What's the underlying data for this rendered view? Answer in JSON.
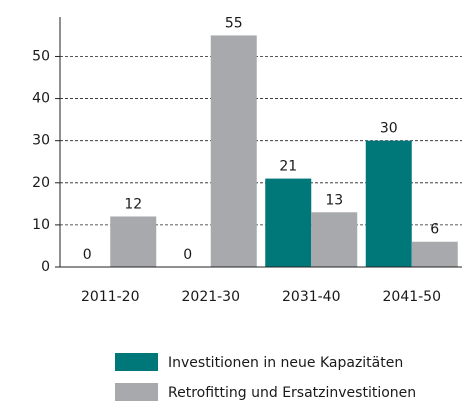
{
  "chart_data": {
    "type": "bar",
    "categories": [
      "2011-20",
      "2021-30",
      "2031-40",
      "2041-50"
    ],
    "series": [
      {
        "name": "Investitionen in neue Kapazitäten",
        "color": "#00787a",
        "values": [
          0,
          0,
          21,
          30
        ]
      },
      {
        "name": "Retrofitting und Ersatzinvestitionen",
        "color": "#a7a9ac",
        "values": [
          12,
          55,
          13,
          6
        ]
      }
    ],
    "ylim": [
      0,
      57
    ],
    "yticks": [
      0,
      10,
      20,
      30,
      40,
      50
    ],
    "grid": true,
    "data_labels": true
  }
}
